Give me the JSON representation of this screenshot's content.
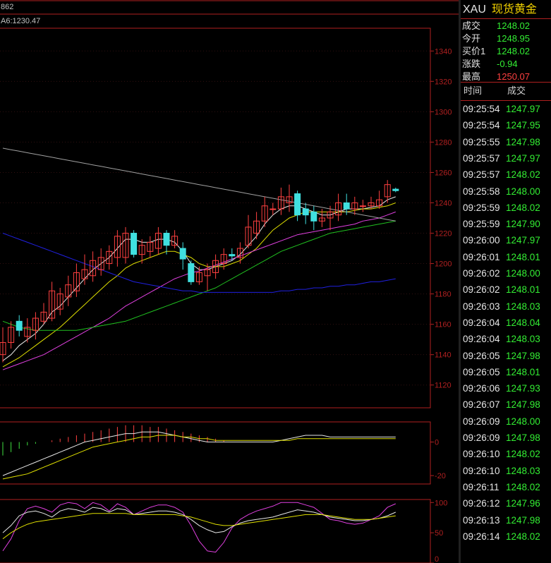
{
  "top_left_label": "862",
  "ma_label": "A6:1230.47",
  "quote_panel": {
    "symbol": "XAU",
    "name": "现货黄金",
    "fields": [
      {
        "label": "成交",
        "value": "1248.02",
        "color": "#33ee33"
      },
      {
        "label": "今开",
        "value": "1248.95",
        "color": "#33ee33"
      },
      {
        "label": "买价1",
        "value": "1248.02",
        "color": "#33ee33"
      },
      {
        "label": "涨跌",
        "value": "-0.94",
        "color": "#33ee33"
      },
      {
        "label": "最高",
        "value": "1250.07",
        "color": "#ff4040"
      }
    ],
    "ticks_header": {
      "time": "时间",
      "price": "成交"
    },
    "ticks": [
      {
        "time": "09:25:54",
        "price": "1247.97"
      },
      {
        "time": "09:25:54",
        "price": "1247.95"
      },
      {
        "time": "09:25:55",
        "price": "1247.98"
      },
      {
        "time": "09:25:57",
        "price": "1247.97"
      },
      {
        "time": "09:25:57",
        "price": "1248.02"
      },
      {
        "time": "09:25:58",
        "price": "1248.00"
      },
      {
        "time": "09:25:59",
        "price": "1248.02"
      },
      {
        "time": "09:25:59",
        "price": "1247.90"
      },
      {
        "time": "09:26:00",
        "price": "1247.97"
      },
      {
        "time": "09:26:01",
        "price": "1248.01"
      },
      {
        "time": "09:26:02",
        "price": "1248.00"
      },
      {
        "time": "09:26:02",
        "price": "1248.01"
      },
      {
        "time": "09:26:03",
        "price": "1248.03"
      },
      {
        "time": "09:26:04",
        "price": "1248.04"
      },
      {
        "time": "09:26:04",
        "price": "1248.03"
      },
      {
        "time": "09:26:05",
        "price": "1247.98"
      },
      {
        "time": "09:26:05",
        "price": "1248.01"
      },
      {
        "time": "09:26:06",
        "price": "1247.93"
      },
      {
        "time": "09:26:07",
        "price": "1247.98"
      },
      {
        "time": "09:26:09",
        "price": "1248.00"
      },
      {
        "time": "09:26:09",
        "price": "1247.98"
      },
      {
        "time": "09:26:10",
        "price": "1248.02"
      },
      {
        "time": "09:26:10",
        "price": "1248.03"
      },
      {
        "time": "09:26:11",
        "price": "1248.02"
      },
      {
        "time": "09:26:12",
        "price": "1247.96"
      },
      {
        "time": "09:26:13",
        "price": "1247.98"
      },
      {
        "time": "09:26:14",
        "price": "1248.02"
      }
    ]
  },
  "chart_data": [
    {
      "type": "candlestick",
      "price_axis_ticks": [
        1340,
        1320,
        1300,
        1280,
        1260,
        1240,
        1220,
        1200,
        1180,
        1160,
        1140,
        1120
      ],
      "ylim": [
        1105,
        1355
      ],
      "candles": [
        {
          "o": 1140,
          "c": 1148,
          "h": 1158,
          "l": 1135,
          "up": true
        },
        {
          "o": 1148,
          "c": 1158,
          "h": 1162,
          "l": 1144,
          "up": true
        },
        {
          "o": 1162,
          "c": 1156,
          "h": 1166,
          "l": 1152,
          "up": false
        },
        {
          "o": 1152,
          "c": 1158,
          "h": 1164,
          "l": 1148,
          "up": true
        },
        {
          "o": 1156,
          "c": 1164,
          "h": 1168,
          "l": 1150,
          "up": true
        },
        {
          "o": 1162,
          "c": 1168,
          "h": 1174,
          "l": 1160,
          "up": true
        },
        {
          "o": 1164,
          "c": 1182,
          "h": 1188,
          "l": 1162,
          "up": true
        },
        {
          "o": 1170,
          "c": 1180,
          "h": 1184,
          "l": 1166,
          "up": true
        },
        {
          "o": 1178,
          "c": 1186,
          "h": 1192,
          "l": 1172,
          "up": true
        },
        {
          "o": 1182,
          "c": 1194,
          "h": 1200,
          "l": 1178,
          "up": true
        },
        {
          "o": 1190,
          "c": 1196,
          "h": 1206,
          "l": 1186,
          "up": true
        },
        {
          "o": 1192,
          "c": 1202,
          "h": 1208,
          "l": 1188,
          "up": true
        },
        {
          "o": 1196,
          "c": 1204,
          "h": 1210,
          "l": 1192,
          "up": true
        },
        {
          "o": 1200,
          "c": 1208,
          "h": 1212,
          "l": 1196,
          "up": true
        },
        {
          "o": 1204,
          "c": 1218,
          "h": 1222,
          "l": 1198,
          "up": true
        },
        {
          "o": 1204,
          "c": 1220,
          "h": 1224,
          "l": 1200,
          "up": true
        },
        {
          "o": 1220,
          "c": 1206,
          "h": 1222,
          "l": 1204,
          "up": false
        },
        {
          "o": 1206,
          "c": 1212,
          "h": 1216,
          "l": 1200,
          "up": true
        },
        {
          "o": 1208,
          "c": 1214,
          "h": 1218,
          "l": 1204,
          "up": true
        },
        {
          "o": 1210,
          "c": 1220,
          "h": 1224,
          "l": 1206,
          "up": true
        },
        {
          "o": 1220,
          "c": 1212,
          "h": 1222,
          "l": 1206,
          "up": false
        },
        {
          "o": 1212,
          "c": 1218,
          "h": 1222,
          "l": 1210,
          "up": true
        },
        {
          "o": 1210,
          "c": 1203,
          "h": 1214,
          "l": 1196,
          "up": false
        },
        {
          "o": 1200,
          "c": 1188,
          "h": 1202,
          "l": 1186,
          "up": false
        },
        {
          "o": 1188,
          "c": 1194,
          "h": 1198,
          "l": 1186,
          "up": true
        },
        {
          "o": 1192,
          "c": 1196,
          "h": 1200,
          "l": 1182,
          "up": true
        },
        {
          "o": 1194,
          "c": 1202,
          "h": 1206,
          "l": 1190,
          "up": true
        },
        {
          "o": 1200,
          "c": 1206,
          "h": 1210,
          "l": 1196,
          "up": true
        },
        {
          "o": 1206,
          "c": 1205,
          "h": 1210,
          "l": 1202,
          "up": false
        },
        {
          "o": 1204,
          "c": 1210,
          "h": 1214,
          "l": 1200,
          "up": true
        },
        {
          "o": 1212,
          "c": 1224,
          "h": 1232,
          "l": 1210,
          "up": true
        },
        {
          "o": 1220,
          "c": 1228,
          "h": 1234,
          "l": 1216,
          "up": true
        },
        {
          "o": 1228,
          "c": 1238,
          "h": 1244,
          "l": 1224,
          "up": true
        },
        {
          "o": 1236,
          "c": 1236,
          "h": 1240,
          "l": 1232,
          "up": true
        },
        {
          "o": 1236,
          "c": 1244,
          "h": 1250,
          "l": 1232,
          "up": true
        },
        {
          "o": 1244,
          "c": 1240,
          "h": 1252,
          "l": 1234,
          "up": true
        },
        {
          "o": 1246,
          "c": 1232,
          "h": 1248,
          "l": 1228,
          "up": false
        },
        {
          "o": 1236,
          "c": 1232,
          "h": 1240,
          "l": 1226,
          "up": false
        },
        {
          "o": 1234,
          "c": 1228,
          "h": 1238,
          "l": 1222,
          "up": false
        },
        {
          "o": 1228,
          "c": 1230,
          "h": 1236,
          "l": 1224,
          "up": true
        },
        {
          "o": 1230,
          "c": 1234,
          "h": 1238,
          "l": 1222,
          "up": true
        },
        {
          "o": 1232,
          "c": 1240,
          "h": 1246,
          "l": 1228,
          "up": true
        },
        {
          "o": 1240,
          "c": 1236,
          "h": 1246,
          "l": 1232,
          "up": false
        },
        {
          "o": 1236,
          "c": 1240,
          "h": 1244,
          "l": 1232,
          "up": true
        },
        {
          "o": 1238,
          "c": 1238,
          "h": 1242,
          "l": 1234,
          "up": true
        },
        {
          "o": 1238,
          "c": 1240,
          "h": 1244,
          "l": 1236,
          "up": true
        },
        {
          "o": 1238,
          "c": 1242,
          "h": 1248,
          "l": 1236,
          "up": true
        },
        {
          "o": 1244,
          "c": 1252,
          "h": 1255,
          "l": 1240,
          "up": true
        },
        {
          "o": 1248,
          "c": 1249,
          "h": 1250,
          "l": 1247,
          "up": false
        }
      ],
      "ma_lines": [
        {
          "color": "#e8e8e8",
          "values": [
            1136,
            1140,
            1146,
            1150,
            1154,
            1160,
            1168,
            1172,
            1178,
            1184,
            1190,
            1196,
            1200,
            1204,
            1210,
            1216,
            1216,
            1214,
            1214,
            1216,
            1216,
            1214,
            1208,
            1200,
            1196,
            1196,
            1198,
            1200,
            1202,
            1206,
            1212,
            1218,
            1226,
            1232,
            1236,
            1238,
            1238,
            1236,
            1234,
            1232,
            1232,
            1234,
            1236,
            1236,
            1236,
            1237,
            1238,
            1242,
            1244
          ]
        },
        {
          "color": "#e0e000",
          "values": [
            1132,
            1135,
            1138,
            1142,
            1146,
            1150,
            1154,
            1158,
            1163,
            1168,
            1173,
            1178,
            1183,
            1188,
            1192,
            1197,
            1200,
            1202,
            1204,
            1206,
            1208,
            1208,
            1206,
            1204,
            1200,
            1198,
            1198,
            1198,
            1200,
            1202,
            1206,
            1210,
            1216,
            1222,
            1226,
            1230,
            1232,
            1234,
            1234,
            1234,
            1234,
            1234,
            1234,
            1235,
            1236,
            1236,
            1237,
            1238,
            1240
          ]
        },
        {
          "color": "#e040e0",
          "values": [
            1130,
            1132,
            1134,
            1136,
            1138,
            1140,
            1143,
            1146,
            1149,
            1152,
            1155,
            1158,
            1161,
            1164,
            1168,
            1172,
            1175,
            1178,
            1181,
            1184,
            1187,
            1190,
            1192,
            1194,
            1195,
            1197,
            1199,
            1201,
            1203,
            1205,
            1207,
            1209,
            1211,
            1213,
            1215,
            1217,
            1219,
            1220,
            1221,
            1222,
            1223,
            1224,
            1225,
            1226,
            1228,
            1229,
            1230,
            1232,
            1234
          ]
        },
        {
          "color": "#20c020",
          "values": [
            1162,
            1160,
            1158,
            1157,
            1156,
            1156,
            1156,
            1156,
            1156,
            1156,
            1157,
            1158,
            1159,
            1160,
            1161,
            1162,
            1164,
            1166,
            1168,
            1170,
            1172,
            1174,
            1176,
            1178,
            1180,
            1182,
            1184,
            1187,
            1190,
            1193,
            1196,
            1199,
            1202,
            1205,
            1208,
            1210,
            1212,
            1214,
            1216,
            1218,
            1220,
            1221,
            1222,
            1223,
            1224,
            1225,
            1226,
            1227,
            1228
          ]
        },
        {
          "color": "#2020e0",
          "values": [
            1220,
            1218,
            1216,
            1214,
            1212,
            1210,
            1208,
            1206,
            1204,
            1202,
            1200,
            1198,
            1196,
            1194,
            1192,
            1190,
            1188,
            1187,
            1186,
            1185,
            1184,
            1183,
            1182,
            1182,
            1181,
            1181,
            1181,
            1181,
            1181,
            1181,
            1181,
            1181,
            1181,
            1181,
            1182,
            1182,
            1183,
            1183,
            1184,
            1184,
            1185,
            1185,
            1186,
            1186,
            1187,
            1188,
            1188,
            1189,
            1190
          ]
        },
        {
          "color": "#a0a0a0",
          "values": [
            1276,
            1275,
            1274,
            1273,
            1272,
            1271,
            1270,
            1269,
            1268,
            1267,
            1266,
            1265,
            1264,
            1263,
            1262,
            1261,
            1260,
            1259,
            1258,
            1257,
            1256,
            1255,
            1254,
            1253,
            1252,
            1251,
            1250,
            1249,
            1248,
            1247,
            1246,
            1245,
            1244,
            1243,
            1242,
            1241,
            1240,
            1239,
            1238,
            1237,
            1236,
            1235,
            1234,
            1233,
            1232,
            1231,
            1230,
            1229,
            1228
          ]
        }
      ]
    },
    {
      "type": "macd",
      "axis_ticks": [
        0,
        -20
      ],
      "ylim": [
        -25,
        12
      ],
      "histogram": [
        -8,
        -6,
        -4,
        -2,
        -1,
        0,
        1,
        2,
        3,
        4,
        5,
        6,
        7,
        8,
        9,
        10,
        10,
        10,
        9,
        9,
        8,
        7,
        6,
        5,
        4,
        3,
        2,
        1,
        0,
        0,
        0,
        0,
        0,
        0,
        0,
        0,
        0,
        0,
        0,
        0,
        0,
        0,
        0,
        0,
        0,
        0,
        0,
        0,
        0
      ],
      "dif": [
        -20,
        -18,
        -16,
        -14,
        -12,
        -10,
        -8,
        -6,
        -4,
        -2,
        0,
        1,
        2,
        3,
        4,
        5,
        5,
        6,
        6,
        6,
        5,
        4,
        3,
        2,
        1,
        0,
        0,
        0,
        0,
        0,
        0,
        0,
        0,
        0,
        1,
        2,
        3,
        4,
        4,
        4,
        3,
        3,
        3,
        3,
        3,
        3,
        3,
        3,
        3
      ],
      "dea": [
        -22,
        -21,
        -20,
        -19,
        -17,
        -15,
        -13,
        -11,
        -9,
        -7,
        -5,
        -3,
        -2,
        -1,
        0,
        1,
        2,
        3,
        3,
        4,
        4,
        4,
        3,
        3,
        2,
        2,
        1,
        1,
        1,
        1,
        1,
        1,
        1,
        1,
        1,
        1,
        2,
        2,
        2,
        2,
        2,
        2,
        2,
        2,
        2,
        2,
        2,
        2,
        2
      ]
    },
    {
      "type": "kdj",
      "axis_ticks": [
        100,
        50,
        0
      ],
      "ylim": [
        0,
        105
      ],
      "k": [
        50,
        62,
        78,
        84,
        86,
        82,
        76,
        86,
        90,
        88,
        84,
        92,
        90,
        84,
        90,
        88,
        80,
        82,
        84,
        86,
        86,
        84,
        80,
        72,
        62,
        55,
        50,
        52,
        60,
        66,
        70,
        72,
        74,
        76,
        80,
        84,
        88,
        86,
        84,
        80,
        76,
        74,
        72,
        70,
        70,
        72,
        74,
        78,
        84
      ],
      "d": [
        40,
        50,
        58,
        64,
        68,
        70,
        72,
        74,
        76,
        78,
        80,
        82,
        82,
        82,
        82,
        82,
        80,
        80,
        80,
        80,
        80,
        80,
        78,
        76,
        72,
        68,
        64,
        62,
        62,
        64,
        66,
        68,
        70,
        72,
        74,
        76,
        78,
        80,
        80,
        80,
        78,
        76,
        74,
        72,
        72,
        72,
        74,
        76,
        78
      ],
      "j": [
        20,
        40,
        70,
        90,
        94,
        90,
        84,
        96,
        100,
        98,
        90,
        100,
        96,
        86,
        98,
        92,
        80,
        86,
        92,
        96,
        96,
        92,
        84,
        62,
        36,
        20,
        18,
        34,
        58,
        72,
        80,
        86,
        90,
        94,
        100,
        100,
        100,
        96,
        92,
        82,
        72,
        70,
        66,
        64,
        66,
        72,
        78,
        92,
        98
      ]
    }
  ]
}
